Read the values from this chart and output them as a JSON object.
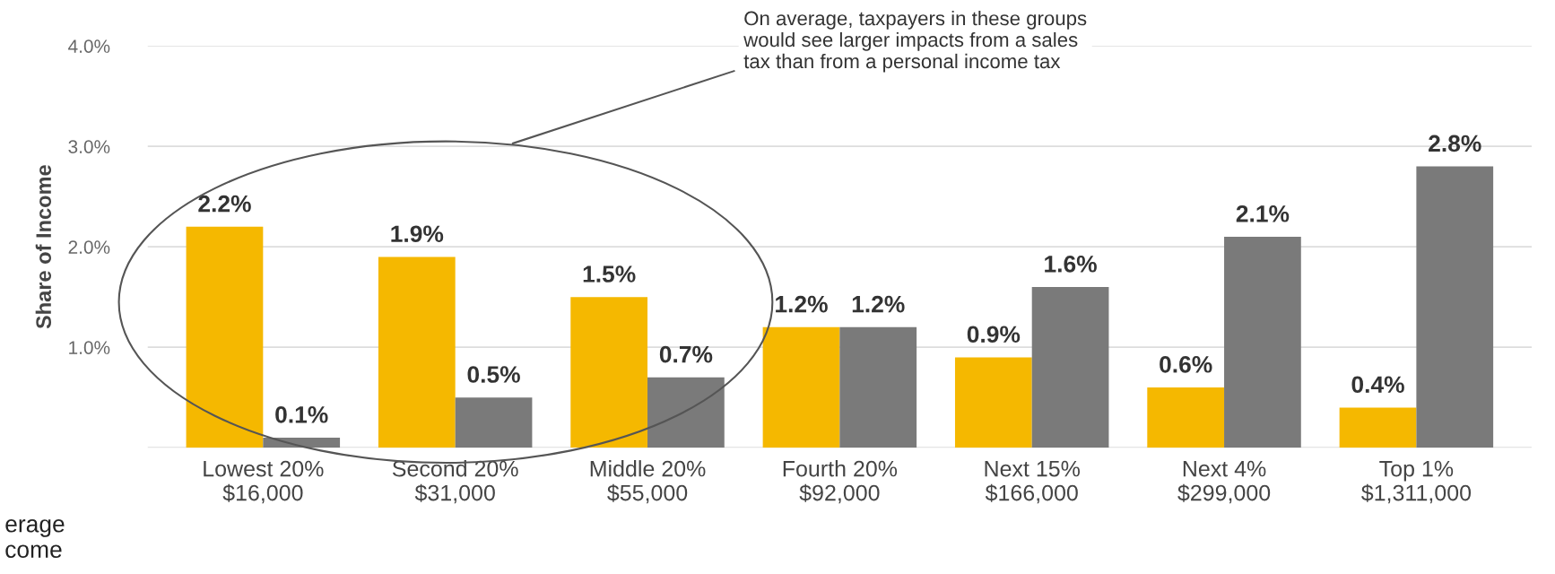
{
  "chart_data": {
    "type": "bar",
    "ylabel": "Share of Income",
    "categories": [
      "Lowest 20%\n$16,000",
      "Second 20%\n$31,000",
      "Middle 20%\n$55,000",
      "Fourth 20%\n$92,000",
      "Next 15%\n$166,000",
      "Next 4%\n$299,000",
      "Top 1%\n$1,311,000"
    ],
    "series": [
      {
        "color": "#f5b800",
        "values": [
          2.2,
          1.9,
          1.5,
          1.2,
          0.9,
          0.6,
          0.4
        ],
        "value_labels": [
          "2.2%",
          "1.9%",
          "1.5%",
          "1.2%",
          "0.9%",
          "0.6%",
          "0.4%"
        ]
      },
      {
        "color": "#7a7a7a",
        "values": [
          0.1,
          0.5,
          0.7,
          1.2,
          1.6,
          2.1,
          2.8
        ],
        "value_labels": [
          "0.1%",
          "0.5%",
          "0.7%",
          "1.2%",
          "1.6%",
          "2.1%",
          "2.8%"
        ]
      }
    ],
    "ylim": [
      0,
      4
    ],
    "yticks": [
      {
        "value": 0,
        "label": null
      },
      {
        "value": 1,
        "label": "1.0%"
      },
      {
        "value": 2,
        "label": "2.0%"
      },
      {
        "value": 3,
        "label": "3.0%"
      },
      {
        "value": 4,
        "label": "4.0%"
      }
    ],
    "grid": "y",
    "legend": false,
    "annotations": [
      "On average, taxpayers in these groups\nwould see larger impacts from a sales\ntax than from a personal income tax",
      "erage\ncome"
    ]
  }
}
